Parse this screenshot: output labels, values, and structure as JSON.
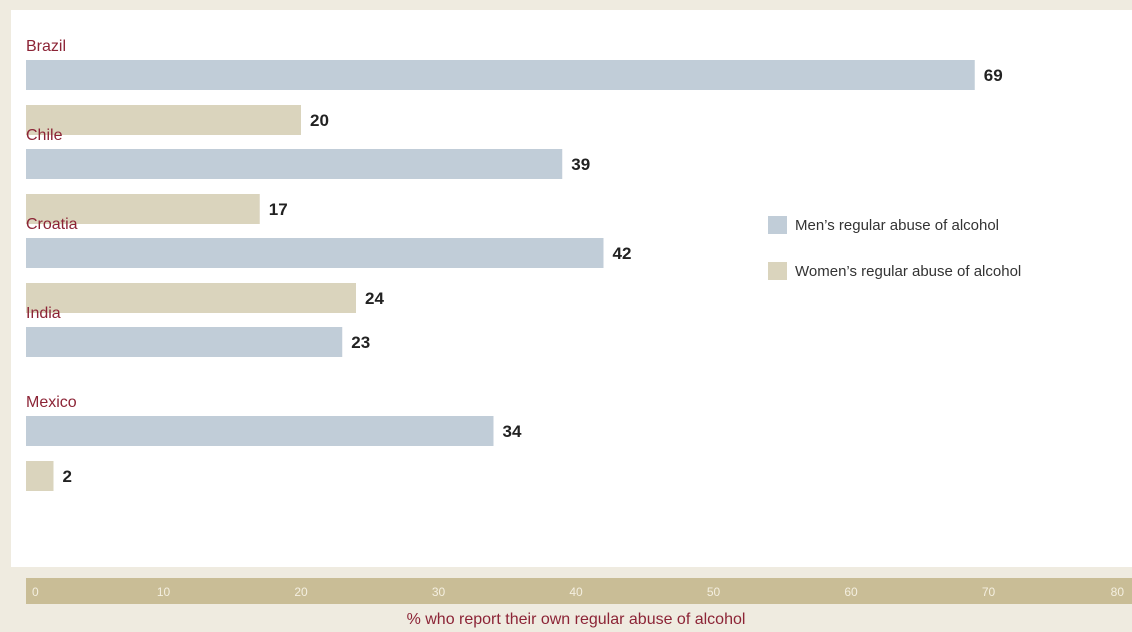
{
  "chart_data": {
    "type": "bar",
    "orientation": "horizontal",
    "categories": [
      "Brazil",
      "Chile",
      "Croatia",
      "India",
      "Mexico"
    ],
    "series": [
      {
        "name": "Men’s regular abuse of alcohol",
        "values": [
          69,
          39,
          42,
          23,
          34
        ],
        "color": "#c1cdd8"
      },
      {
        "name": "Women’s regular abuse of alcohol",
        "values": [
          20,
          17,
          24,
          null,
          2
        ],
        "color": "#dad4bd"
      }
    ],
    "xlabel": "% who report their own regular abuse of alcohol",
    "xlim": [
      0,
      80
    ],
    "xticks": [
      0,
      10,
      20,
      30,
      40,
      50,
      60,
      70,
      80
    ],
    "grid": false,
    "legend": "right",
    "colors": {
      "background": "#efebe0",
      "panel": "#ffffff",
      "axis_band": "#c9bd96",
      "category_text": "#8c2436"
    }
  }
}
